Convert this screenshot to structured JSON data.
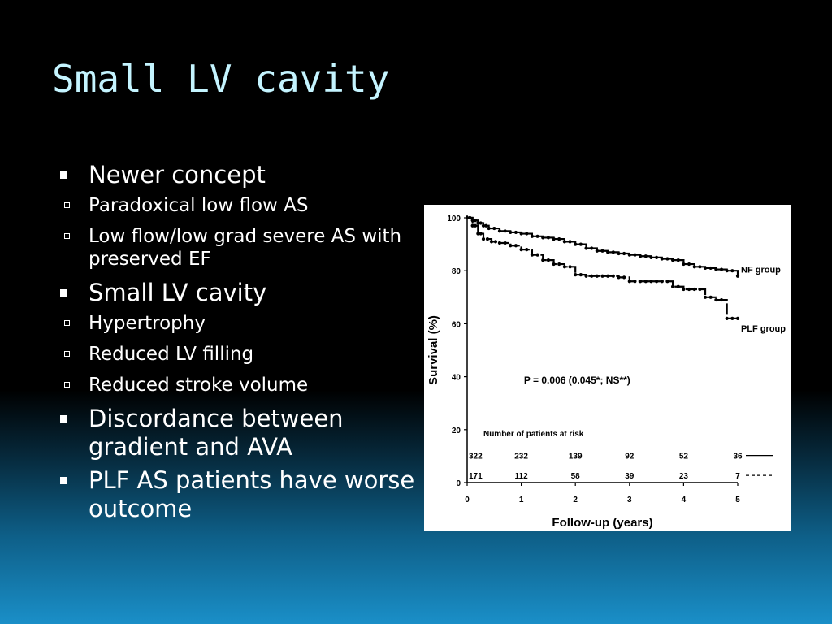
{
  "slide": {
    "title": "Small LV cavity",
    "bullets": [
      {
        "text": "Newer concept",
        "sub": [
          "Paradoxical low flow AS",
          "Low flow/low grad severe AS with preserved EF"
        ]
      },
      {
        "text": "Small LV cavity",
        "sub": [
          "Hypertrophy",
          "Reduced LV filling",
          "Reduced stroke volume"
        ]
      },
      {
        "text": "Discordance between gradient and AVA",
        "sub": []
      },
      {
        "text": "PLF AS patients have worse outcome",
        "sub": []
      }
    ]
  },
  "chart_data": {
    "type": "line",
    "xlabel": "Follow-up (years)",
    "ylabel": "Survival (%)",
    "xlim": [
      0,
      5
    ],
    "ylim": [
      0,
      100
    ],
    "xticks": [
      "0",
      "1",
      "2",
      "3",
      "4",
      "5"
    ],
    "yticks": [
      "0",
      "20",
      "40",
      "60",
      "80",
      "100"
    ],
    "legend": "series labels at right end of curves",
    "annotation": "P = 0.006 (0.045*; NS**)",
    "series": [
      {
        "name": "NF group",
        "x": [
          0,
          0.1,
          0.2,
          0.3,
          0.4,
          0.6,
          0.8,
          1.0,
          1.2,
          1.4,
          1.6,
          1.8,
          2.0,
          2.2,
          2.4,
          2.6,
          2.8,
          3.0,
          3.2,
          3.4,
          3.6,
          3.8,
          4.0,
          4.2,
          4.4,
          4.6,
          4.8,
          5.0
        ],
        "y": [
          100,
          99,
          98,
          97,
          96,
          95,
          94.5,
          94,
          93,
          92.5,
          92,
          91,
          90,
          88.5,
          87.5,
          87,
          86.5,
          86,
          85.5,
          85,
          84.5,
          84,
          82.5,
          81.5,
          81,
          80.5,
          80,
          78
        ],
        "line_style": "solid"
      },
      {
        "name": "PLF group",
        "x": [
          0,
          0.1,
          0.2,
          0.3,
          0.45,
          0.6,
          0.8,
          1.0,
          1.2,
          1.4,
          1.6,
          1.8,
          2.0,
          2.2,
          2.4,
          2.6,
          2.8,
          3.0,
          3.2,
          3.4,
          3.6,
          3.8,
          4.0,
          4.2,
          4.4,
          4.6,
          4.8,
          5.0
        ],
        "y": [
          100,
          97,
          94,
          92,
          91,
          90.5,
          89.5,
          88,
          86,
          84,
          82.5,
          81.5,
          78.5,
          78,
          78,
          78,
          77.5,
          76,
          76,
          76,
          76,
          74,
          73,
          73,
          70,
          69,
          62,
          62
        ],
        "line_style": "dashed"
      }
    ],
    "risk_table": {
      "title": "Number of patients at risk",
      "x": [
        0,
        1,
        2,
        3,
        4,
        5
      ],
      "rows": [
        {
          "group": "NF group",
          "counts": [
            "322",
            "232",
            "139",
            "92",
            "52",
            "36"
          ],
          "line_style": "solid"
        },
        {
          "group": "PLF group",
          "counts": [
            "171",
            "112",
            "58",
            "39",
            "23",
            "7"
          ],
          "line_style": "dashed"
        }
      ]
    }
  }
}
